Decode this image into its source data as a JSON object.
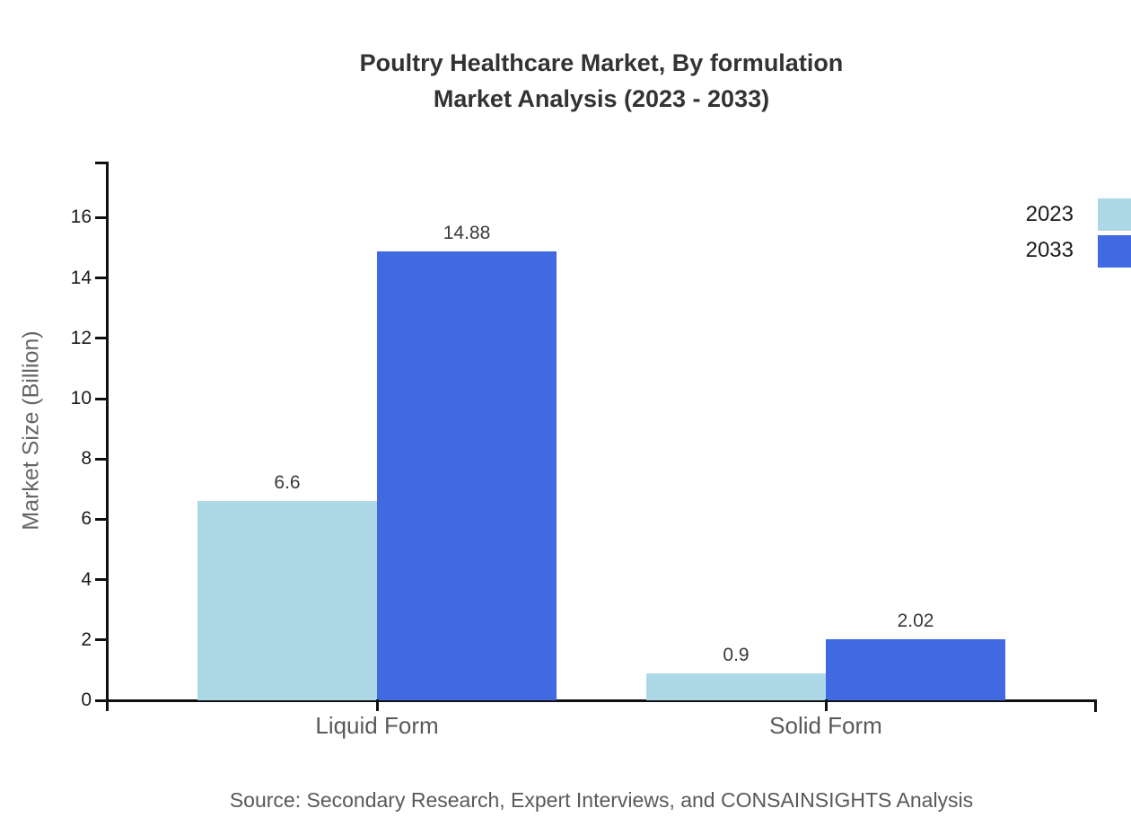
{
  "title": {
    "line1": "Poultry Healthcare Market, By formulation",
    "line2": "Market Analysis (2023 - 2033)"
  },
  "source": "Source: Secondary Research, Expert Interviews, and CONSAINSIGHTS Analysis",
  "colors": {
    "series_2023": "#ADD8E6",
    "series_2033": "#4169E1",
    "axis": "#111111",
    "title_text": "#333333",
    "gray_text": "#595959"
  },
  "chart_data": {
    "type": "bar",
    "categories": [
      "Liquid Form",
      "Solid Form"
    ],
    "series": [
      {
        "name": "2023",
        "color": "#ADD8E6",
        "values": [
          6.6,
          0.9
        ]
      },
      {
        "name": "2033",
        "color": "#4169E1",
        "values": [
          14.88,
          2.02
        ]
      }
    ],
    "value_labels": [
      [
        "6.6",
        "0.9"
      ],
      [
        "14.88",
        "2.02"
      ]
    ],
    "title": "Poultry Healthcare Market, By formulation Market Analysis (2023 - 2033)",
    "xlabel": "",
    "ylabel": "Market Size (Billion)",
    "ylim": [
      0,
      17.86
    ],
    "yticks": [
      0,
      2,
      4,
      6,
      8,
      10,
      12,
      14,
      16
    ],
    "grid": false,
    "legend_position": "top-right"
  }
}
